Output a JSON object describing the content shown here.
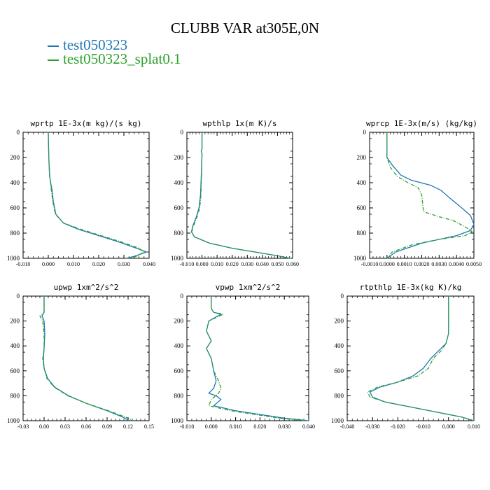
{
  "title": "CLUBB VAR at305E,0N",
  "legend": [
    {
      "label": "test050323",
      "color": "#1f77b4"
    },
    {
      "label": "test050323_splat0.1",
      "color": "#2ca02c"
    }
  ],
  "chart_data": [
    {
      "type": "line",
      "title": "wprtp 1E-3x(m kg)/(s kg)",
      "xlim": [
        -0.01,
        0.04
      ],
      "xticks": [
        -0.01,
        0.0,
        0.01,
        0.02,
        0.03,
        0.04
      ],
      "xtick_labels": [
        "-0.010",
        "0.000",
        "0.010",
        "0.020",
        "0.030",
        "0.040"
      ],
      "ylim": [
        0,
        1000
      ],
      "yticks": [
        0,
        200,
        400,
        600,
        800,
        1000
      ],
      "ytick_labels": [
        "0",
        "200",
        "400",
        "600",
        "800",
        "1000"
      ],
      "series": [
        {
          "name": "test050323",
          "color": "#1f77b4",
          "dash": false,
          "x": [
            0.0,
            0.0002,
            0.0005,
            0.0015,
            0.002,
            0.003,
            0.006,
            0.012,
            0.02,
            0.028,
            0.035,
            0.039,
            0.034,
            0.031
          ],
          "y": [
            0,
            200,
            350,
            460,
            550,
            650,
            720,
            770,
            820,
            870,
            920,
            950,
            985,
            1000
          ]
        },
        {
          "name": "test050323_splat0.1",
          "color": "#2ca02c",
          "dash": true,
          "x": [
            0.0,
            0.0002,
            0.0006,
            0.0012,
            0.0018,
            0.0028,
            0.006,
            0.013,
            0.021,
            0.029,
            0.036,
            0.038,
            0.035,
            0.032
          ],
          "y": [
            0,
            200,
            350,
            460,
            550,
            650,
            720,
            770,
            820,
            870,
            920,
            950,
            985,
            1000
          ]
        }
      ]
    },
    {
      "type": "line",
      "title": "wpthlp 1x(m K)/s",
      "xlim": [
        -0.01,
        0.06
      ],
      "xticks": [
        -0.01,
        0.0,
        0.01,
        0.02,
        0.03,
        0.04,
        0.05,
        0.06
      ],
      "xtick_labels": [
        "-0.010",
        "0.000",
        "0.010",
        "0.020",
        "0.030",
        "0.040",
        "0.050",
        "0.060"
      ],
      "ylim": [
        0,
        1000
      ],
      "yticks": [
        0,
        200,
        400,
        600,
        800,
        1000
      ],
      "ytick_labels": [
        "0",
        "200",
        "400",
        "600",
        "800",
        "1000"
      ],
      "series": [
        {
          "name": "test050323",
          "color": "#1f77b4",
          "dash": false,
          "x": [
            0.0,
            0.0,
            -0.0005,
            0.0,
            -0.0005,
            -0.001,
            -0.002,
            -0.004,
            -0.006,
            -0.007,
            -0.005,
            0.005,
            0.02,
            0.035,
            0.05,
            0.058
          ],
          "y": [
            0,
            130,
            150,
            170,
            350,
            500,
            600,
            680,
            740,
            790,
            830,
            880,
            920,
            950,
            980,
            1000
          ]
        },
        {
          "name": "test050323_splat0.1",
          "color": "#2ca02c",
          "dash": true,
          "x": [
            0.0,
            0.0,
            -0.0005,
            0.0,
            -0.0003,
            -0.0007,
            -0.0015,
            -0.0035,
            -0.0055,
            -0.0068,
            -0.005,
            0.005,
            0.02,
            0.035,
            0.05,
            0.059
          ],
          "y": [
            0,
            130,
            150,
            170,
            350,
            500,
            600,
            680,
            740,
            790,
            830,
            880,
            920,
            950,
            980,
            1000
          ]
        }
      ]
    },
    {
      "type": "line",
      "title": "wprcp 1E-3x(m/s) (kg/kg)",
      "xlim": [
        -0.001,
        0.005
      ],
      "xticks": [
        -0.001,
        0.0,
        0.001,
        0.002,
        0.003,
        0.004,
        0.005
      ],
      "xtick_labels": [
        "-0.0010",
        "0.0000",
        "0.0010",
        "0.0020",
        "0.0030",
        "0.0040",
        "0.0050"
      ],
      "ylim": [
        0,
        1000
      ],
      "yticks": [
        0,
        200,
        400,
        600,
        800,
        1000
      ],
      "ytick_labels": [
        "0",
        "200",
        "400",
        "600",
        "800",
        "1000"
      ],
      "series": [
        {
          "name": "test050323",
          "color": "#1f77b4",
          "dash": false,
          "x": [
            0.0,
            0.0,
            0.0003,
            0.0008,
            0.0014,
            0.0025,
            0.0031,
            0.0036,
            0.0043,
            0.0048,
            0.005,
            0.0048,
            0.004,
            0.002,
            0.0005,
            0.0
          ],
          "y": [
            0,
            200,
            260,
            340,
            380,
            420,
            460,
            520,
            600,
            660,
            730,
            780,
            820,
            880,
            950,
            1000
          ]
        },
        {
          "name": "test050323_splat0.1",
          "color": "#2ca02c",
          "dash": true,
          "x": [
            0.0,
            0.0,
            0.0002,
            0.0006,
            0.0012,
            0.0018,
            0.002,
            0.0021,
            0.003,
            0.0038,
            0.0045,
            0.0049,
            0.0045,
            0.003,
            0.0015,
            0.0003,
            0.0
          ],
          "y": [
            0,
            200,
            280,
            350,
            400,
            440,
            500,
            630,
            670,
            700,
            750,
            790,
            820,
            850,
            890,
            950,
            1000
          ]
        }
      ]
    },
    {
      "type": "line",
      "title": "upwp 1xm^2/s^2",
      "xlim": [
        -0.03,
        0.15
      ],
      "xticks": [
        -0.03,
        0.0,
        0.03,
        0.06,
        0.09,
        0.12,
        0.15
      ],
      "xtick_labels": [
        "-0.03",
        "0.00",
        "0.03",
        "0.06",
        "0.09",
        "0.12",
        "0.15"
      ],
      "ylim": [
        0,
        1000
      ],
      "yticks": [
        0,
        200,
        400,
        600,
        800,
        1000
      ],
      "ytick_labels": [
        "0",
        "200",
        "400",
        "600",
        "800",
        "1000"
      ],
      "series": [
        {
          "name": "test050323",
          "color": "#1f77b4",
          "dash": false,
          "x": [
            0.0,
            0.0,
            -0.003,
            0.0,
            0.001,
            0.0,
            -0.001,
            0.0,
            0.005,
            0.015,
            0.035,
            0.06,
            0.09,
            0.112,
            0.122
          ],
          "y": [
            0,
            130,
            160,
            200,
            300,
            420,
            500,
            580,
            660,
            730,
            800,
            860,
            920,
            970,
            1000
          ]
        },
        {
          "name": "test050323_splat0.1",
          "color": "#2ca02c",
          "dash": true,
          "x": [
            0.0,
            0.0,
            -0.006,
            -0.002,
            0.0,
            0.0,
            -0.002,
            0.0,
            0.004,
            0.014,
            0.034,
            0.06,
            0.092,
            0.116,
            0.128
          ],
          "y": [
            0,
            130,
            160,
            200,
            300,
            420,
            500,
            580,
            660,
            730,
            800,
            860,
            920,
            970,
            1000
          ]
        }
      ]
    },
    {
      "type": "line",
      "title": "vpwp 1xm^2/s^2",
      "xlim": [
        -0.01,
        0.04
      ],
      "xticks": [
        -0.01,
        0.0,
        0.01,
        0.02,
        0.03,
        0.04
      ],
      "xtick_labels": [
        "-0.010",
        "0.000",
        "0.010",
        "0.020",
        "0.030",
        "0.040"
      ],
      "ylim": [
        0,
        1000
      ],
      "yticks": [
        0,
        200,
        400,
        600,
        800,
        1000
      ],
      "ytick_labels": [
        "0",
        "200",
        "400",
        "600",
        "800",
        "1000"
      ],
      "series": [
        {
          "name": "test050323",
          "color": "#1f77b4",
          "dash": false,
          "x": [
            0.0,
            0.0,
            0.001,
            0.004,
            -0.001,
            -0.002,
            0.0,
            -0.002,
            0.0,
            0.001,
            0.002,
            0.001,
            -0.001,
            0.002,
            0.004,
            0.001,
            0.01,
            0.02,
            0.03,
            0.04
          ],
          "y": [
            0,
            100,
            130,
            145,
            200,
            280,
            360,
            420,
            500,
            600,
            680,
            740,
            780,
            800,
            830,
            880,
            920,
            950,
            980,
            1000
          ]
        },
        {
          "name": "test050323_splat0.1",
          "color": "#2ca02c",
          "dash": true,
          "x": [
            0.0,
            0.0,
            0.001,
            0.005,
            -0.001,
            -0.002,
            0.0,
            -0.002,
            0.0,
            0.001,
            0.003,
            0.004,
            0.003,
            0.0,
            -0.001,
            0.008,
            0.018,
            0.028,
            0.039
          ],
          "y": [
            0,
            100,
            130,
            145,
            200,
            280,
            360,
            420,
            500,
            600,
            680,
            740,
            780,
            830,
            880,
            920,
            950,
            980,
            1000
          ]
        }
      ]
    },
    {
      "type": "line",
      "title": "rtpthlp 1E-3x(kg K)/kg",
      "xlim": [
        -0.04,
        0.01
      ],
      "xticks": [
        -0.04,
        -0.03,
        -0.02,
        -0.01,
        0.0,
        0.01
      ],
      "xtick_labels": [
        "-0.040",
        "-0.030",
        "-0.020",
        "-0.010",
        "0.000",
        "0.010"
      ],
      "ylim": [
        0,
        1000
      ],
      "yticks": [
        0,
        200,
        400,
        600,
        800,
        1000
      ],
      "ytick_labels": [
        "0",
        "200",
        "400",
        "600",
        "800",
        "1000"
      ],
      "series": [
        {
          "name": "test050323",
          "color": "#1f77b4",
          "dash": false,
          "x": [
            0.0,
            0.0,
            -0.001,
            -0.004,
            -0.007,
            -0.01,
            -0.014,
            -0.02,
            -0.027,
            -0.031,
            -0.03,
            -0.025,
            -0.015,
            -0.005,
            0.005,
            0.01
          ],
          "y": [
            0,
            300,
            380,
            440,
            500,
            580,
            640,
            690,
            730,
            770,
            810,
            850,
            890,
            930,
            970,
            1000
          ]
        },
        {
          "name": "test050323_splat0.1",
          "color": "#2ca02c",
          "dash": true,
          "x": [
            0.0,
            0.0,
            -0.001,
            -0.003,
            -0.006,
            -0.008,
            -0.012,
            -0.02,
            -0.028,
            -0.032,
            -0.031,
            -0.025,
            -0.015,
            -0.005,
            0.005,
            0.01
          ],
          "y": [
            0,
            300,
            380,
            440,
            500,
            580,
            640,
            690,
            730,
            770,
            810,
            850,
            890,
            930,
            970,
            1000
          ]
        }
      ]
    }
  ]
}
